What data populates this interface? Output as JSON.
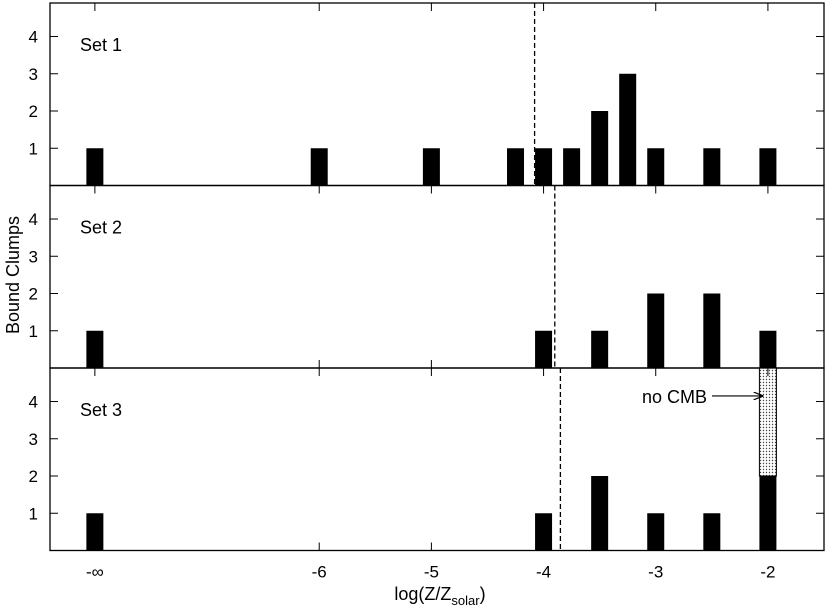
{
  "chart_data": {
    "type": "bar",
    "ylabel": "Bound Clumps",
    "xlabel": {
      "text": "log(Z/Z",
      "subscript": "solar",
      "suffix": ")"
    },
    "xlim": [
      -8.4,
      -1.5
    ],
    "ylim": [
      0,
      4.9
    ],
    "x_ticks": [
      {
        "value": -8,
        "label": "-∞"
      },
      {
        "value": -6,
        "label": "-6"
      },
      {
        "value": -5,
        "label": "-5"
      },
      {
        "value": -4,
        "label": "-4"
      },
      {
        "value": -3,
        "label": "-3"
      },
      {
        "value": -2,
        "label": "-2"
      }
    ],
    "y_ticks": [
      1,
      2,
      3,
      4
    ],
    "panels": [
      {
        "name": "Set 1",
        "vline": -4.08,
        "bars": [
          {
            "x": -8,
            "y": 1
          },
          {
            "x": -6,
            "y": 1
          },
          {
            "x": -5,
            "y": 1
          },
          {
            "x": -4.25,
            "y": 1
          },
          {
            "x": -4,
            "y": 1
          },
          {
            "x": -3.75,
            "y": 1
          },
          {
            "x": -3.5,
            "y": 2
          },
          {
            "x": -3.25,
            "y": 3
          },
          {
            "x": -3,
            "y": 1
          },
          {
            "x": -2.5,
            "y": 1
          },
          {
            "x": -2,
            "y": 1
          }
        ]
      },
      {
        "name": "Set 2",
        "vline": -3.9,
        "bars": [
          {
            "x": -8,
            "y": 1
          },
          {
            "x": -4,
            "y": 1
          },
          {
            "x": -3.5,
            "y": 1
          },
          {
            "x": -3,
            "y": 2
          },
          {
            "x": -2.5,
            "y": 2
          },
          {
            "x": -2,
            "y": 1
          }
        ]
      },
      {
        "name": "Set 3",
        "vline": -3.85,
        "bars": [
          {
            "x": -8,
            "y": 1
          },
          {
            "x": -4,
            "y": 1
          },
          {
            "x": -3.5,
            "y": 2
          },
          {
            "x": -3,
            "y": 1
          },
          {
            "x": -2.5,
            "y": 1
          },
          {
            "x": -2,
            "y": 2
          }
        ],
        "hatched_bars": [
          {
            "x": -2,
            "from": 2,
            "to": 4.9
          }
        ],
        "annotation": {
          "text": "no CMB",
          "x": -2.05,
          "y": 4.15
        }
      }
    ]
  }
}
